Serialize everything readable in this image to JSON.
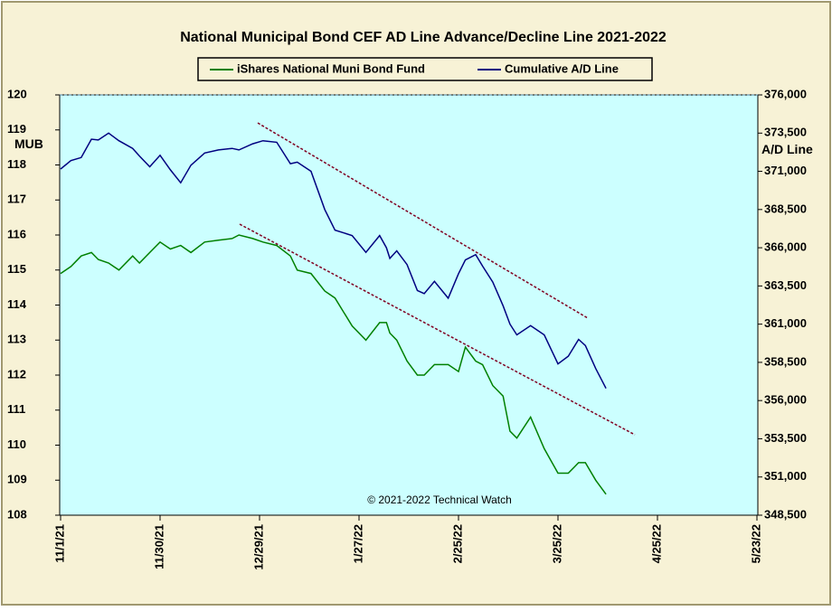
{
  "chart_data": {
    "type": "line",
    "title": "National Municipal Bond CEF AD Line Advance/Decline Line 2021-2022",
    "y_label": "MUB",
    "y2_label": "A/D Line",
    "annotation": "© 2021-2022 Technical Watch",
    "x": [
      0,
      3,
      6,
      9,
      11,
      14,
      17,
      21,
      23,
      26,
      29,
      32,
      35,
      38,
      42,
      46,
      50,
      52,
      56,
      59,
      63,
      67,
      69,
      73,
      77,
      80,
      85,
      89,
      93,
      95,
      96,
      98,
      101,
      104,
      106,
      109,
      113,
      116,
      118,
      121,
      123,
      126,
      129,
      131,
      133,
      137,
      141,
      145,
      148,
      151,
      153,
      156,
      159
    ],
    "xlim": [
      0,
      203
    ],
    "xticks": [
      {
        "value": 0,
        "label": "11/1/21"
      },
      {
        "value": 29,
        "label": "11/30/21"
      },
      {
        "value": 58,
        "label": "12/29/21"
      },
      {
        "value": 87,
        "label": "1/27/22"
      },
      {
        "value": 116,
        "label": "2/25/22"
      },
      {
        "value": 145,
        "label": "3/25/22"
      },
      {
        "value": 174,
        "label": "4/25/22"
      },
      {
        "value": 203,
        "label": "5/23/22"
      }
    ],
    "ylim": [
      108,
      120
    ],
    "yticks": [
      108,
      109,
      110,
      111,
      112,
      113,
      114,
      115,
      116,
      117,
      118,
      119,
      120
    ],
    "y2lim": [
      348500,
      376000
    ],
    "y2ticks": [
      {
        "value": 348500,
        "label": "348,500"
      },
      {
        "value": 351000,
        "label": "351,000"
      },
      {
        "value": 353500,
        "label": "353,500"
      },
      {
        "value": 356000,
        "label": "356,000"
      },
      {
        "value": 358500,
        "label": "358,500"
      },
      {
        "value": 361000,
        "label": "361,000"
      },
      {
        "value": 363500,
        "label": "363,500"
      },
      {
        "value": 366000,
        "label": "366,000"
      },
      {
        "value": 368500,
        "label": "368,500"
      },
      {
        "value": 371000,
        "label": "371,000"
      },
      {
        "value": 373500,
        "label": "373,500"
      },
      {
        "value": 376000,
        "label": "376,000"
      }
    ],
    "series": [
      {
        "name": "iShares National Muni Bond Fund",
        "color": "#008000",
        "axis": "y",
        "values": [
          114.9,
          115.1,
          115.4,
          115.5,
          115.3,
          115.2,
          115.0,
          115.4,
          115.2,
          115.5,
          115.8,
          115.6,
          115.7,
          115.5,
          115.8,
          115.85,
          115.9,
          116.0,
          115.9,
          115.8,
          115.7,
          115.4,
          115.0,
          114.9,
          114.4,
          114.2,
          113.4,
          113.0,
          113.5,
          113.5,
          113.2,
          113.0,
          112.4,
          112.0,
          112.0,
          112.3,
          112.3,
          112.1,
          112.8,
          112.4,
          112.3,
          111.7,
          111.4,
          110.4,
          110.2,
          110.8,
          109.9,
          109.2,
          109.2,
          109.5,
          109.5,
          109.0,
          108.6
        ]
      },
      {
        "name": "Cumulative A/D Line",
        "color": "#000080",
        "axis": "y2",
        "values": [
          371150,
          371700,
          371900,
          373100,
          373050,
          373500,
          373000,
          372500,
          372000,
          371300,
          372050,
          371100,
          370250,
          371400,
          372200,
          372400,
          372500,
          372400,
          372800,
          373000,
          372900,
          371500,
          371600,
          371000,
          368500,
          367150,
          366800,
          365700,
          366800,
          366000,
          365300,
          365800,
          364900,
          363200,
          363000,
          363800,
          362700,
          364300,
          365200,
          365550,
          364800,
          363750,
          362200,
          361000,
          360300,
          360900,
          360300,
          358400,
          358900,
          360000,
          359600,
          358100,
          356800
        ]
      }
    ]
  }
}
